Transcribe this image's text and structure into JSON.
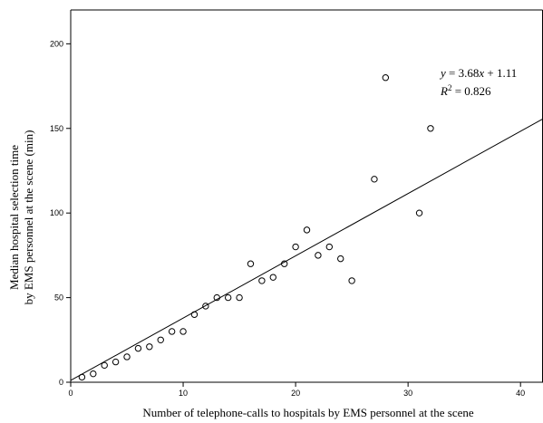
{
  "chart_data": {
    "type": "scatter",
    "title": "",
    "xlabel": "Number of  telephone-calls to hospitals by EMS personnel at the scene",
    "ylabel_lines": [
      "Median hospital selection time",
      "by EMS personnel at the scene  (min)"
    ],
    "xlim": [
      0,
      42
    ],
    "ylim": [
      0,
      220
    ],
    "xticks": [
      0,
      10,
      20,
      30,
      40
    ],
    "yticks": [
      0,
      50,
      100,
      150,
      200
    ],
    "grid": false,
    "points": [
      {
        "x": 1,
        "y": 3
      },
      {
        "x": 2,
        "y": 5
      },
      {
        "x": 3,
        "y": 10
      },
      {
        "x": 4,
        "y": 12
      },
      {
        "x": 5,
        "y": 15
      },
      {
        "x": 6,
        "y": 20
      },
      {
        "x": 7,
        "y": 21
      },
      {
        "x": 8,
        "y": 25
      },
      {
        "x": 9,
        "y": 30
      },
      {
        "x": 10,
        "y": 30
      },
      {
        "x": 11,
        "y": 40
      },
      {
        "x": 12,
        "y": 45
      },
      {
        "x": 13,
        "y": 50
      },
      {
        "x": 14,
        "y": 50
      },
      {
        "x": 15,
        "y": 50
      },
      {
        "x": 16,
        "y": 70
      },
      {
        "x": 17,
        "y": 60
      },
      {
        "x": 18,
        "y": 62
      },
      {
        "x": 19,
        "y": 70
      },
      {
        "x": 20,
        "y": 80
      },
      {
        "x": 21,
        "y": 90
      },
      {
        "x": 22,
        "y": 75
      },
      {
        "x": 23,
        "y": 80
      },
      {
        "x": 24,
        "y": 73
      },
      {
        "x": 25,
        "y": 60
      },
      {
        "x": 27,
        "y": 120
      },
      {
        "x": 28,
        "y": 180
      },
      {
        "x": 31,
        "y": 100
      },
      {
        "x": 32,
        "y": 150
      }
    ],
    "fit": {
      "slope": 3.68,
      "intercept": 1.11,
      "equation_y": "y",
      "equation_rest": " = 3.68",
      "equation_x": "x",
      "equation_tail": " + 1.11",
      "r2_label": "R",
      "r2_sup": "2",
      "r2_value": " = 0.826"
    }
  }
}
